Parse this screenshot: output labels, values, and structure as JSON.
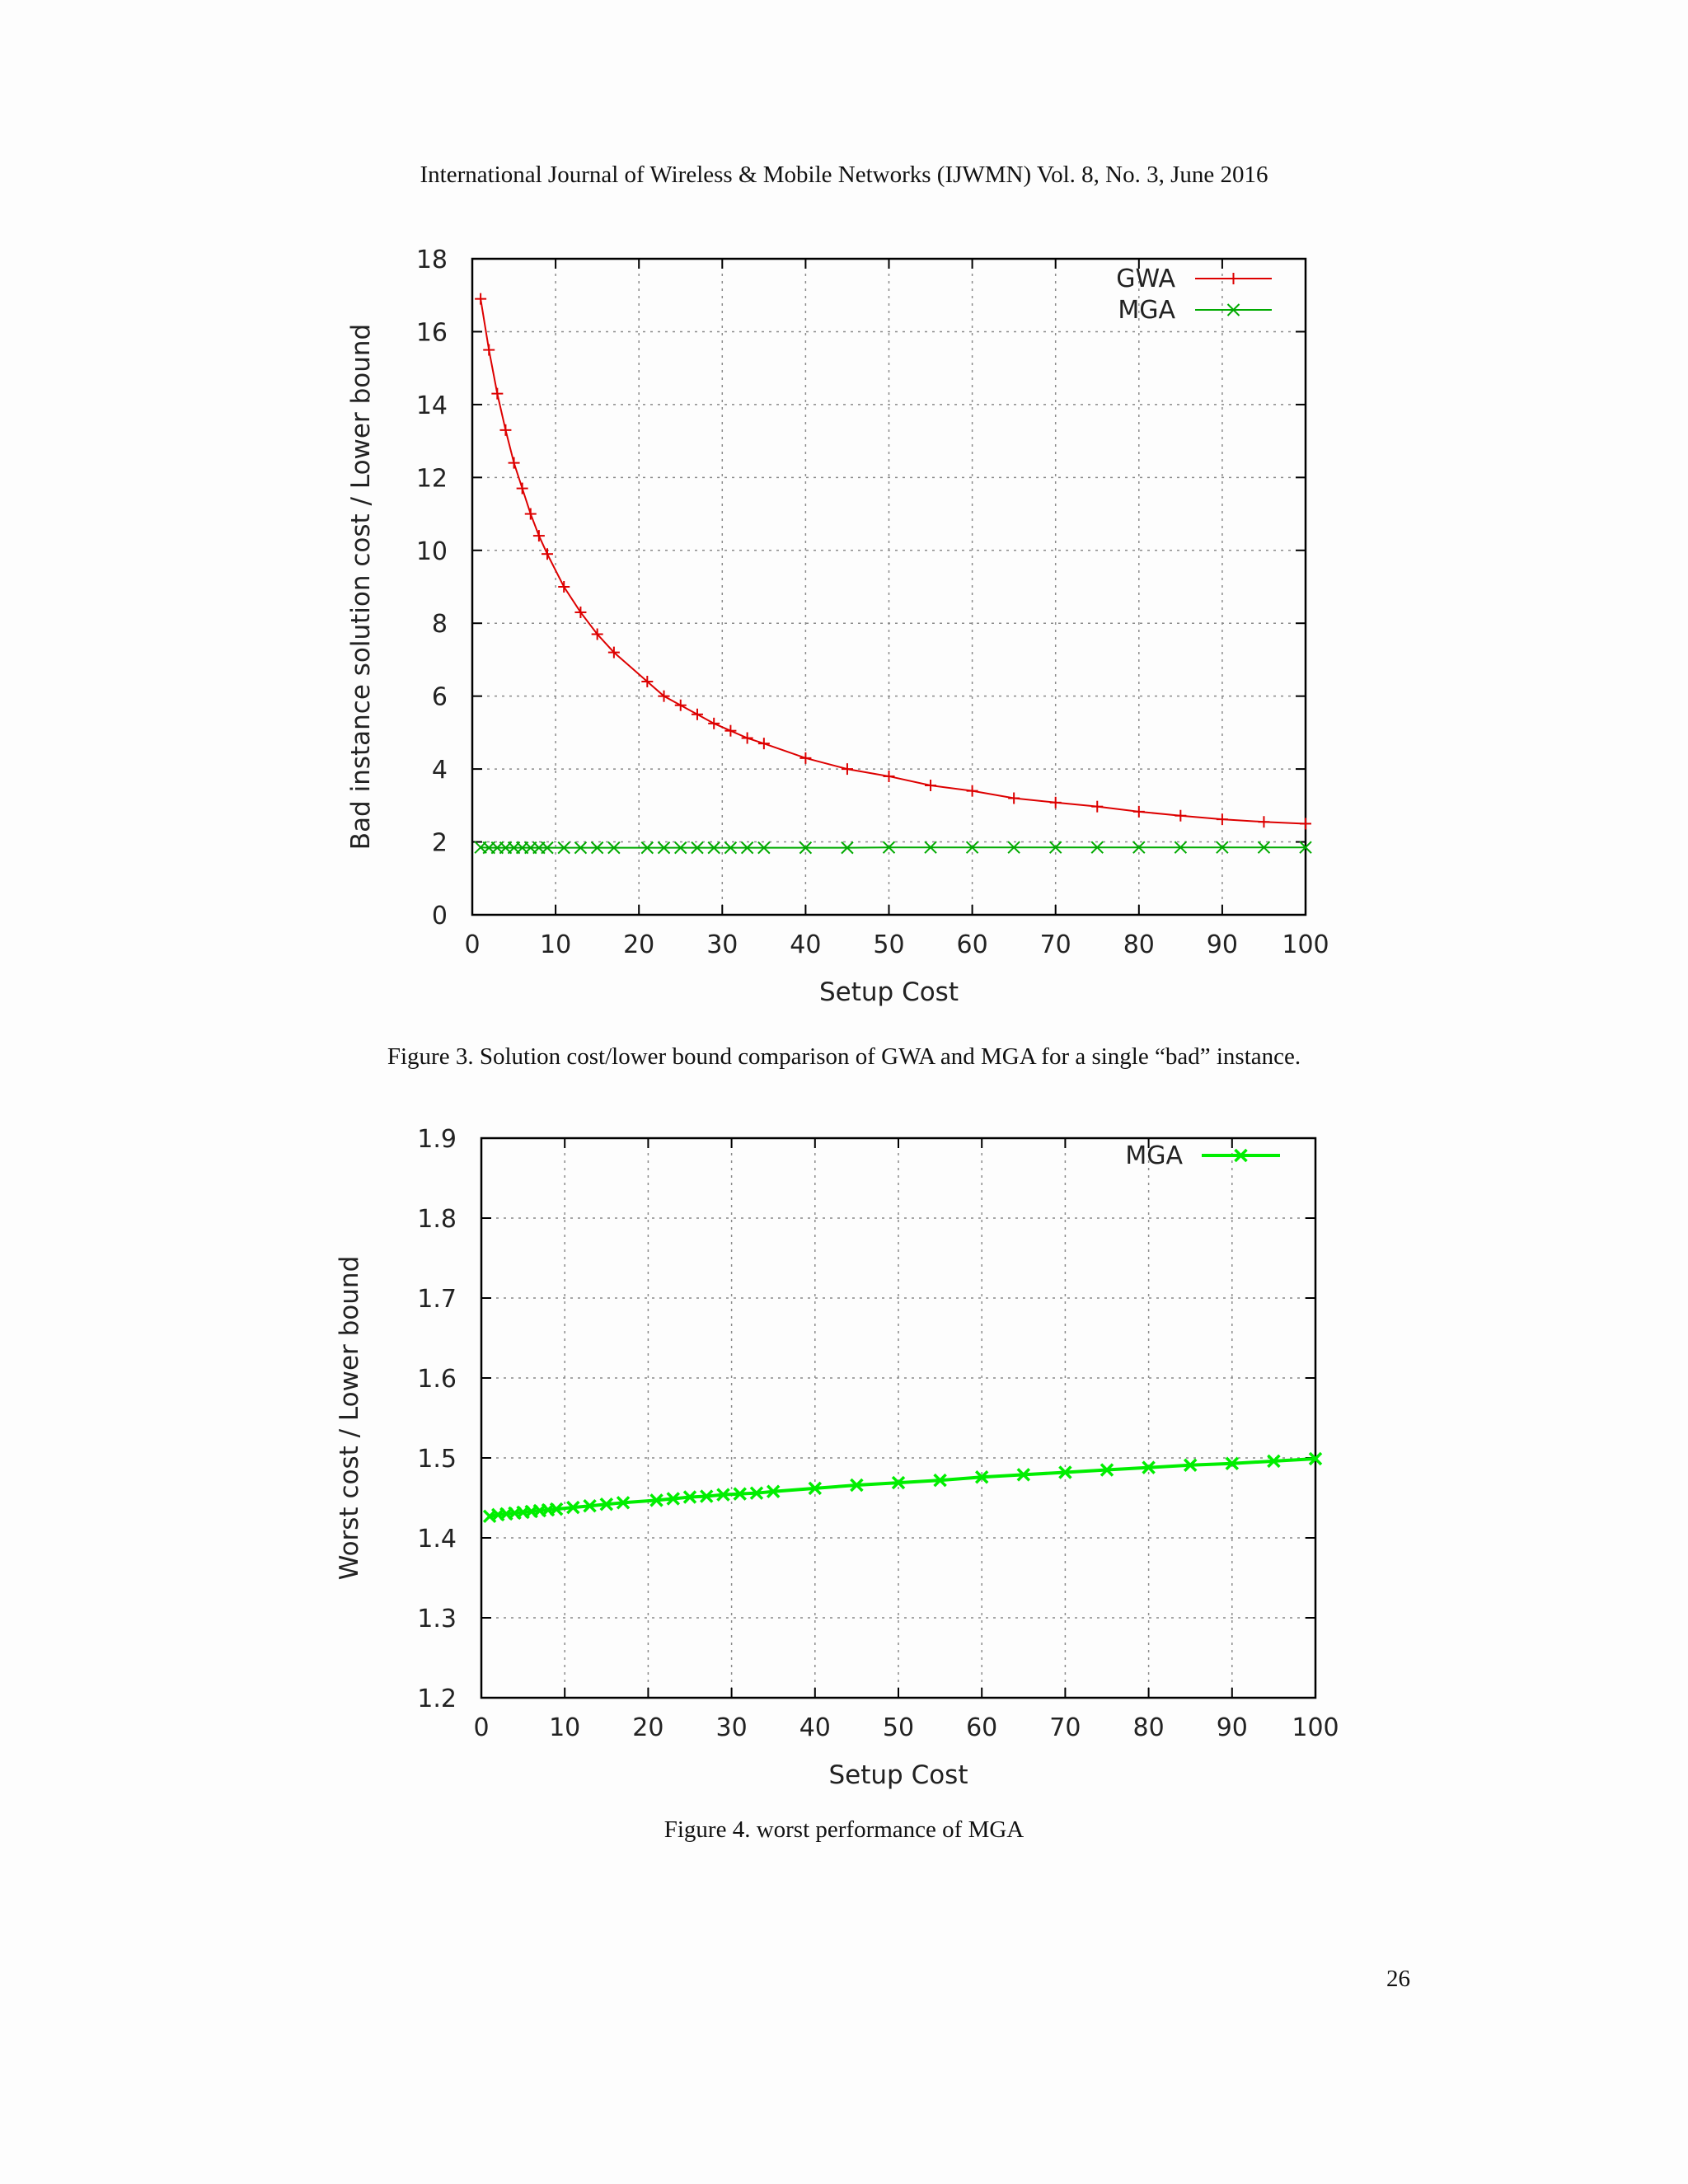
{
  "header": "International Journal of Wireless & Mobile Networks (IJWMN) Vol. 8, No. 3, June 2016",
  "captions": {
    "fig3": "Figure 3. Solution cost/lower bound comparison of GWA and MGA for a single “bad” instance.",
    "fig4": "Figure 4. worst performance of MGA"
  },
  "page_number": "26",
  "chart_data": [
    {
      "type": "line",
      "title": "",
      "xlabel": "Setup Cost",
      "ylabel": "Bad instance solution cost / Lower bound",
      "xlim": [
        0,
        100
      ],
      "ylim": [
        0,
        18
      ],
      "xticks": [
        0,
        10,
        20,
        30,
        40,
        50,
        60,
        70,
        80,
        90,
        100
      ],
      "yticks": [
        0,
        2,
        4,
        6,
        8,
        10,
        12,
        14,
        16,
        18
      ],
      "grid": true,
      "legend_position": "top-right",
      "series": [
        {
          "name": "GWA",
          "color": "#dd0000",
          "marker": "plus",
          "x": [
            1,
            2,
            3,
            4,
            5,
            6,
            7,
            8,
            9,
            11,
            13,
            15,
            17,
            21,
            23,
            25,
            27,
            29,
            31,
            33,
            35,
            40,
            45,
            50,
            55,
            60,
            65,
            70,
            75,
            80,
            85,
            90,
            95,
            100
          ],
          "y": [
            16.9,
            15.5,
            14.3,
            13.3,
            12.4,
            11.7,
            11.0,
            10.4,
            9.9,
            9.0,
            8.3,
            7.7,
            7.2,
            6.4,
            6.0,
            5.75,
            5.5,
            5.25,
            5.05,
            4.85,
            4.7,
            4.3,
            4.0,
            3.8,
            3.55,
            3.4,
            3.2,
            3.08,
            2.97,
            2.83,
            2.72,
            2.62,
            2.55,
            2.5
          ]
        },
        {
          "name": "MGA",
          "color": "#00aa00",
          "marker": "cross",
          "x": [
            1,
            2,
            3,
            4,
            5,
            6,
            7,
            8,
            9,
            11,
            13,
            15,
            17,
            21,
            23,
            25,
            27,
            29,
            31,
            33,
            35,
            40,
            45,
            50,
            55,
            60,
            65,
            70,
            75,
            80,
            85,
            90,
            95,
            100
          ],
          "y": [
            1.85,
            1.84,
            1.84,
            1.84,
            1.84,
            1.84,
            1.84,
            1.84,
            1.84,
            1.84,
            1.84,
            1.84,
            1.84,
            1.84,
            1.84,
            1.84,
            1.84,
            1.84,
            1.84,
            1.84,
            1.84,
            1.84,
            1.84,
            1.85,
            1.85,
            1.85,
            1.85,
            1.85,
            1.85,
            1.85,
            1.85,
            1.85,
            1.85,
            1.85
          ]
        }
      ]
    },
    {
      "type": "line",
      "title": "",
      "xlabel": "Setup Cost",
      "ylabel": "Worst cost / Lower bound",
      "xlim": [
        0,
        100
      ],
      "ylim": [
        1.2,
        1.9
      ],
      "xticks": [
        0,
        10,
        20,
        30,
        40,
        50,
        60,
        70,
        80,
        90,
        100
      ],
      "yticks": [
        "1.2",
        "1.3",
        "1.4",
        "1.5",
        "1.6",
        "1.7",
        "1.8",
        "1.9"
      ],
      "grid": true,
      "legend_position": "top-right",
      "series": [
        {
          "name": "MGA",
          "color": "#00ee00",
          "marker": "cross",
          "x": [
            1,
            2,
            3,
            4,
            5,
            6,
            7,
            8,
            9,
            11,
            13,
            15,
            17,
            21,
            23,
            25,
            27,
            29,
            31,
            33,
            35,
            40,
            45,
            50,
            55,
            60,
            65,
            70,
            75,
            80,
            85,
            90,
            95,
            100
          ],
          "y": [
            1.427,
            1.429,
            1.43,
            1.431,
            1.432,
            1.433,
            1.434,
            1.435,
            1.436,
            1.438,
            1.44,
            1.442,
            1.444,
            1.447,
            1.449,
            1.451,
            1.452,
            1.454,
            1.455,
            1.456,
            1.458,
            1.462,
            1.466,
            1.469,
            1.472,
            1.476,
            1.479,
            1.482,
            1.485,
            1.488,
            1.491,
            1.493,
            1.496,
            1.499
          ]
        }
      ]
    }
  ]
}
